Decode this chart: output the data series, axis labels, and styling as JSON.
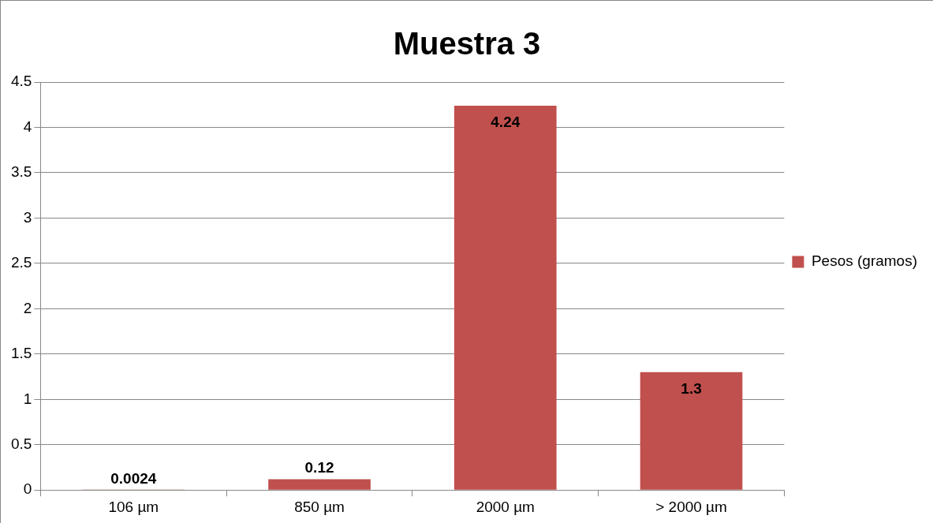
{
  "chart_data": {
    "type": "bar",
    "title": "Muestra 3",
    "categories": [
      "106 µm",
      "850 µm",
      "2000 µm",
      "> 2000 µm"
    ],
    "series": [
      {
        "name": "Pesos (gramos)",
        "color": "#c0504d",
        "values": [
          0.0024,
          0.12,
          4.24,
          1.3
        ]
      }
    ],
    "ylim": [
      0,
      4.5
    ],
    "yticks": [
      0,
      0.5,
      1,
      1.5,
      2,
      2.5,
      3,
      3.5,
      4,
      4.5
    ],
    "grid": "y",
    "legend": "right",
    "data_labels": true
  }
}
